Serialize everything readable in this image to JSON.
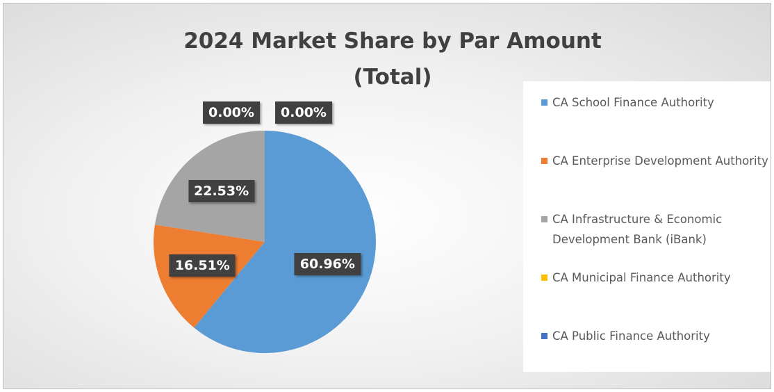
{
  "chart_data": {
    "type": "pie",
    "title": "2024 Market Share by Par Amount (Total)",
    "categories": [
      "CA School Finance Authority",
      "CA Enterprise Development Authority",
      "CA Infrastructure & Economic Development Bank (iBank)",
      "CA Municipal Finance Authority",
      "CA Public Finance Authority"
    ],
    "values": [
      60.96,
      16.51,
      22.53,
      0.0,
      0.0
    ],
    "value_labels": [
      "60.96%",
      "16.51%",
      "22.53%",
      "0.00%",
      "0.00%"
    ],
    "colors": [
      "#5b9bd5",
      "#ed7d31",
      "#a5a5a5",
      "#ffc000",
      "#4472c4"
    ],
    "legend": "right"
  }
}
